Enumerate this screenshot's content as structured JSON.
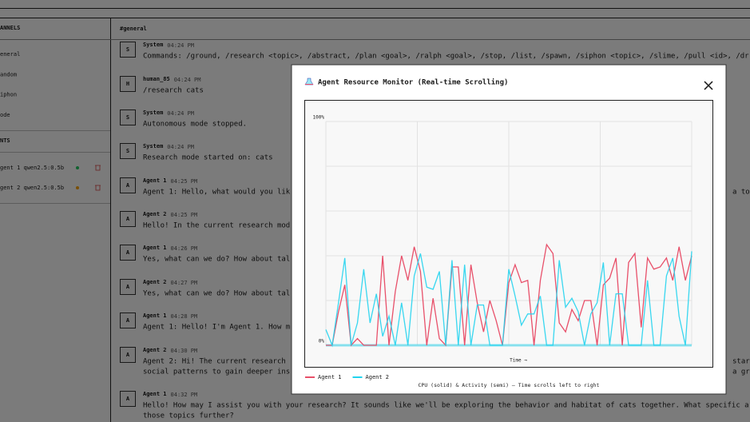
{
  "sidebar": {
    "channels_header": "ANNELS",
    "channels": [
      "eneral",
      "andom",
      "iphon",
      "ode"
    ],
    "agents_header": "NTS",
    "agents": [
      {
        "label": "gent 1 qwen2.5:0.5b",
        "status": "#22c55e"
      },
      {
        "label": "gent 2 qwen2.5:0.5b",
        "status": "#f59e0b"
      }
    ]
  },
  "header": {
    "channel": "#general"
  },
  "messages": [
    {
      "avatar": "S",
      "name": "System",
      "time": "04:24 PM",
      "lines": [
        "Commands: /ground, /research <topic>, /abstract, /plan <goal>, /ralph <goal>, /stop, /list, /spawn, /siphon <topic>, /slime, /pull <id>, /dr"
      ],
      "right": []
    },
    {
      "avatar": "H",
      "name": "human_85",
      "time": "04:24 PM",
      "lines": [
        "/research cats"
      ],
      "right": []
    },
    {
      "avatar": "S",
      "name": "System",
      "time": "04:24 PM",
      "lines": [
        "Autonomous mode stopped."
      ],
      "right": []
    },
    {
      "avatar": "S",
      "name": "System",
      "time": "04:24 PM",
      "lines": [
        "Research mode started on: cats"
      ],
      "right": []
    },
    {
      "avatar": "A",
      "name": "Agent 1",
      "time": "04:25 PM",
      "lines": [
        "Agent 1: Hello, what would you lik"
      ],
      "right": [
        "a top"
      ]
    },
    {
      "avatar": "A",
      "name": "Agent 2",
      "time": "04:25 PM",
      "lines": [
        "Hello! In the current research mod"
      ],
      "right": []
    },
    {
      "avatar": "A",
      "name": "Agent 1",
      "time": "04:26 PM",
      "lines": [
        "Yes, what can we do? How about tal"
      ],
      "right": []
    },
    {
      "avatar": "A",
      "name": "Agent 2",
      "time": "04:27 PM",
      "lines": [
        "Yes, what can we do? How about tal"
      ],
      "right": []
    },
    {
      "avatar": "A",
      "name": "Agent 1",
      "time": "04:28 PM",
      "lines": [
        "Agent 1: Hello! I'm Agent 1. How m"
      ],
      "right": []
    },
    {
      "avatar": "A",
      "name": "Agent 2",
      "time": "04:30 PM",
      "lines": [
        "Agent 2: Hi! The current research",
        "social patterns to gain deeper ins"
      ],
      "right": [
        "start",
        "a gre"
      ]
    },
    {
      "avatar": "A",
      "name": "Agent 1",
      "time": "04:32 PM",
      "lines": [
        "Hello! How may I assist you with your research? It sounds like we'll be exploring the behavior and habitat of cats together. What specific a",
        "those topics further?"
      ],
      "right": []
    }
  ],
  "modal": {
    "title": "Agent Resource Monitor (Real-time Scrolling)"
  },
  "chart_data": {
    "type": "line",
    "xlabel": "Time →",
    "caption": "CPU (solid) & Activity (semi) — Time scrolls left to right",
    "ylim": [
      0,
      100
    ],
    "yticks": [
      {
        "value": 0,
        "label": "0%"
      },
      {
        "value": 100,
        "label": "100%"
      }
    ],
    "grid": true,
    "series": [
      {
        "name": "Agent 1",
        "color": "#e8506a",
        "values": [
          0,
          0,
          15,
          27,
          0,
          3,
          0,
          0,
          0,
          40,
          0,
          24,
          40,
          29,
          44,
          33,
          0,
          21,
          3,
          0,
          35,
          35,
          0,
          36,
          19,
          6,
          20,
          11,
          0,
          28,
          36,
          28,
          29,
          0,
          29,
          45,
          41,
          10,
          6,
          16,
          11,
          20,
          20,
          0,
          27,
          30,
          39,
          0,
          37,
          41,
          8,
          39,
          34,
          35,
          39,
          29,
          44,
          29,
          40
        ]
      },
      {
        "name": "Agent 2",
        "color": "#22d3ee",
        "values": [
          7,
          0,
          19,
          39,
          0,
          10,
          34,
          10,
          23,
          4,
          13,
          0,
          19,
          0,
          31,
          41,
          26,
          25,
          33,
          0,
          38,
          0,
          36,
          0,
          18,
          18,
          0,
          0,
          0,
          34,
          22,
          9,
          14,
          14,
          22,
          0,
          0,
          38,
          17,
          21,
          15,
          0,
          14,
          19,
          37,
          0,
          23,
          23,
          0,
          0,
          0,
          29,
          0,
          0,
          31,
          39,
          13,
          0,
          42
        ]
      }
    ]
  }
}
